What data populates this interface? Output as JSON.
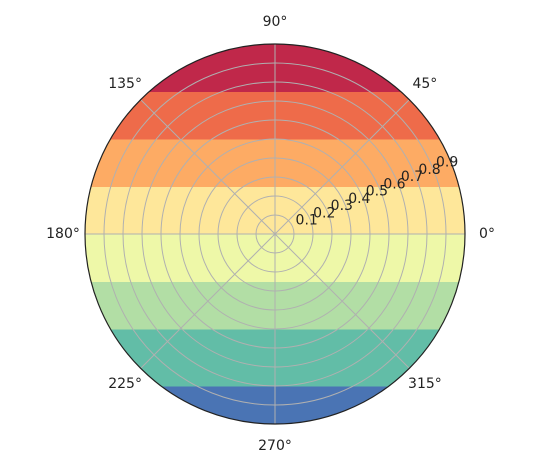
{
  "chart_data": {
    "type": "polar-contourf",
    "title": "",
    "theta_ticks_deg": [
      0,
      45,
      90,
      135,
      180,
      225,
      270,
      315
    ],
    "theta_tick_labels": [
      "0°",
      "45°",
      "90°",
      "135°",
      "180°",
      "225°",
      "270°",
      "315°"
    ],
    "r_ticks": [
      0.1,
      0.2,
      0.3,
      0.4,
      0.5,
      0.6,
      0.7,
      0.8,
      0.9
    ],
    "r_tick_labels": [
      "0.1",
      "0.2",
      "0.3",
      "0.4",
      "0.5",
      "0.6",
      "0.7",
      "0.8",
      "0.9"
    ],
    "r_label_angle_deg": 22.5,
    "rlim": [
      0,
      1.0
    ],
    "grid": true,
    "colormap": "Spectral_r",
    "bands": [
      {
        "y_from": -1.0,
        "y_to": -0.8,
        "color": "#4a74b4"
      },
      {
        "y_from": -0.8,
        "y_to": -0.5,
        "color": "#62bda7"
      },
      {
        "y_from": -0.5,
        "y_to": -0.25,
        "color": "#b2dea5"
      },
      {
        "y_from": -0.25,
        "y_to": 0.0,
        "color": "#eef8a8"
      },
      {
        "y_from": 0.0,
        "y_to": 0.25,
        "color": "#fee79a"
      },
      {
        "y_from": 0.25,
        "y_to": 0.5,
        "color": "#fdab64"
      },
      {
        "y_from": 0.5,
        "y_to": 0.75,
        "color": "#ee6b4a"
      },
      {
        "y_from": 0.75,
        "y_to": 1.0,
        "color": "#c0284a"
      }
    ]
  }
}
